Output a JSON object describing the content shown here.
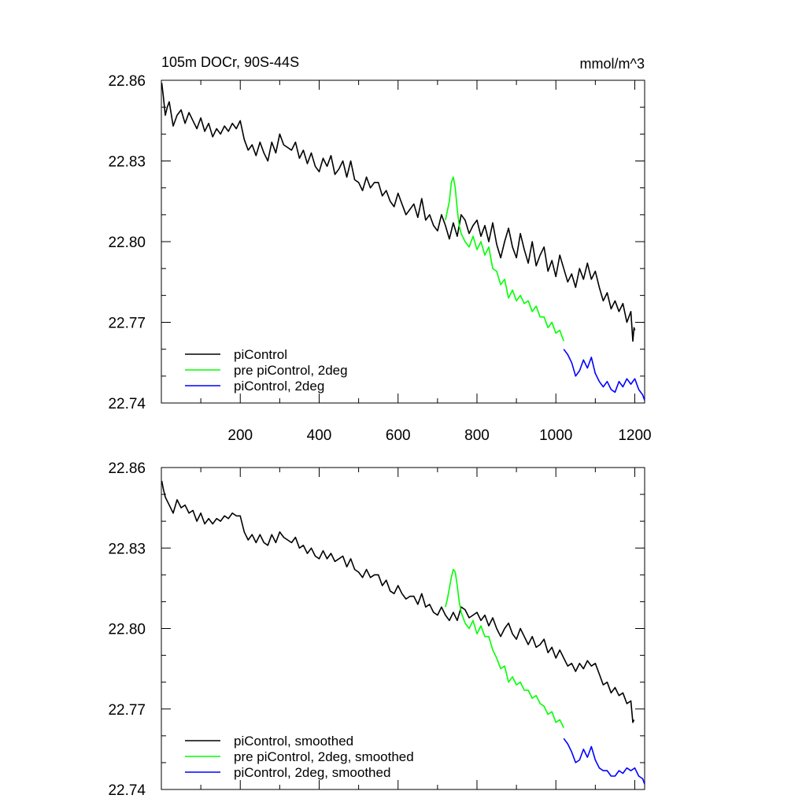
{
  "chart_data": [
    {
      "type": "line",
      "title_left": "105m DOCr, 90S-44S",
      "title_right": "mmol/m^3",
      "xlim": [
        0,
        1225
      ],
      "ylim": [
        22.74,
        22.86
      ],
      "xticks": [
        200,
        400,
        600,
        800,
        1000,
        1200
      ],
      "xticklabels": [
        "200",
        "400",
        "600",
        "800",
        "1000",
        "1200"
      ],
      "yticks": [
        22.74,
        22.77,
        22.8,
        22.83,
        22.86
      ],
      "yticklabels": [
        "22.74",
        "22.77",
        "22.80",
        "22.83",
        "22.86"
      ],
      "legend_position": "bottom-left",
      "series": [
        {
          "name": "piControl",
          "color": "#000000",
          "x": [
            1,
            5,
            10,
            15,
            20,
            30,
            40,
            50,
            60,
            70,
            80,
            90,
            100,
            110,
            120,
            130,
            140,
            150,
            160,
            170,
            180,
            190,
            200,
            210,
            220,
            230,
            240,
            250,
            260,
            270,
            280,
            290,
            300,
            310,
            320,
            330,
            340,
            350,
            360,
            370,
            380,
            390,
            400,
            410,
            420,
            430,
            440,
            450,
            460,
            470,
            480,
            490,
            500,
            510,
            520,
            530,
            540,
            550,
            560,
            570,
            580,
            590,
            600,
            610,
            620,
            630,
            640,
            650,
            660,
            670,
            680,
            690,
            700,
            710,
            720,
            730,
            740,
            750,
            760,
            770,
            780,
            790,
            800,
            810,
            820,
            830,
            840,
            850,
            860,
            870,
            880,
            890,
            900,
            910,
            920,
            930,
            940,
            950,
            960,
            970,
            980,
            990,
            1000,
            1010,
            1020,
            1030,
            1040,
            1050,
            1060,
            1070,
            1080,
            1090,
            1100,
            1110,
            1120,
            1130,
            1140,
            1150,
            1160,
            1170,
            1180,
            1190,
            1195,
            1198,
            1200
          ],
          "values": [
            22.859,
            22.854,
            22.847,
            22.85,
            22.852,
            22.843,
            22.847,
            22.849,
            22.844,
            22.848,
            22.845,
            22.842,
            22.846,
            22.841,
            22.844,
            22.839,
            22.842,
            22.84,
            22.843,
            22.841,
            22.844,
            22.842,
            22.845,
            22.838,
            22.834,
            22.836,
            22.832,
            22.837,
            22.833,
            22.83,
            22.837,
            22.833,
            22.84,
            22.836,
            22.835,
            22.834,
            22.837,
            22.831,
            22.834,
            22.829,
            22.833,
            22.828,
            22.826,
            22.831,
            22.828,
            22.832,
            22.825,
            22.827,
            22.83,
            22.824,
            22.83,
            22.823,
            22.822,
            22.819,
            22.824,
            22.82,
            22.822,
            22.822,
            22.817,
            22.819,
            22.815,
            22.813,
            22.818,
            22.814,
            22.81,
            22.812,
            22.814,
            22.809,
            22.816,
            22.808,
            22.81,
            22.806,
            22.804,
            22.81,
            22.806,
            22.801,
            22.807,
            22.802,
            22.81,
            22.808,
            22.803,
            22.806,
            22.808,
            22.802,
            22.806,
            22.8,
            22.807,
            22.799,
            22.794,
            22.8,
            22.805,
            22.798,
            22.794,
            22.803,
            22.797,
            22.792,
            22.8,
            22.791,
            22.795,
            22.798,
            22.789,
            22.793,
            22.787,
            22.795,
            22.79,
            22.785,
            22.788,
            22.783,
            22.79,
            22.786,
            22.792,
            22.786,
            22.789,
            22.783,
            22.778,
            22.781,
            22.775,
            22.778,
            22.774,
            22.777,
            22.77,
            22.774,
            22.763,
            22.768,
            22.767
          ]
        },
        {
          "name": "pre piControl, 2deg",
          "color": "#00ff00",
          "x": [
            720,
            730,
            735,
            740,
            745,
            750,
            755,
            760,
            770,
            780,
            790,
            800,
            810,
            820,
            830,
            840,
            850,
            860,
            870,
            880,
            890,
            900,
            910,
            920,
            930,
            940,
            950,
            960,
            970,
            980,
            990,
            1000,
            1010,
            1020
          ],
          "values": [
            22.808,
            22.815,
            22.822,
            22.824,
            22.82,
            22.812,
            22.806,
            22.803,
            22.8,
            22.798,
            22.802,
            22.797,
            22.8,
            22.795,
            22.798,
            22.79,
            22.789,
            22.784,
            22.786,
            22.779,
            22.782,
            22.778,
            22.78,
            22.777,
            22.778,
            22.774,
            22.776,
            22.772,
            22.772,
            22.768,
            22.77,
            22.766,
            22.767,
            22.763
          ]
        },
        {
          "name": "piControl, 2deg",
          "color": "#0000ff",
          "x": [
            1020,
            1030,
            1040,
            1050,
            1060,
            1070,
            1080,
            1090,
            1100,
            1110,
            1120,
            1130,
            1140,
            1150,
            1160,
            1170,
            1180,
            1190,
            1200,
            1210,
            1220,
            1225
          ],
          "values": [
            22.76,
            22.758,
            22.755,
            22.75,
            22.752,
            22.756,
            22.753,
            22.757,
            22.751,
            22.748,
            22.746,
            22.748,
            22.745,
            22.744,
            22.748,
            22.746,
            22.749,
            22.747,
            22.749,
            22.745,
            22.743,
            22.741
          ]
        }
      ]
    },
    {
      "type": "line",
      "xlim": [
        0,
        1225
      ],
      "ylim": [
        22.74,
        22.86
      ],
      "xticks": [
        200,
        400,
        600,
        800,
        1000,
        1200
      ],
      "yticks": [
        22.74,
        22.77,
        22.8,
        22.83,
        22.86
      ],
      "yticklabels": [
        "22.74",
        "22.77",
        "22.80",
        "22.83",
        "22.86"
      ],
      "legend_position": "bottom-left",
      "series": [
        {
          "name": "piControl, smoothed",
          "color": "#000000",
          "x": [
            1,
            5,
            10,
            20,
            30,
            40,
            50,
            60,
            70,
            80,
            90,
            100,
            110,
            120,
            130,
            140,
            150,
            160,
            170,
            180,
            190,
            200,
            210,
            220,
            230,
            240,
            250,
            260,
            270,
            280,
            290,
            300,
            310,
            320,
            330,
            340,
            350,
            360,
            370,
            380,
            390,
            400,
            410,
            420,
            430,
            440,
            450,
            460,
            470,
            480,
            490,
            500,
            510,
            520,
            530,
            540,
            550,
            560,
            570,
            580,
            590,
            600,
            610,
            620,
            630,
            640,
            650,
            660,
            670,
            680,
            690,
            700,
            710,
            720,
            730,
            740,
            750,
            760,
            770,
            780,
            790,
            800,
            810,
            820,
            830,
            840,
            850,
            860,
            870,
            880,
            890,
            900,
            910,
            920,
            930,
            940,
            950,
            960,
            970,
            980,
            990,
            1000,
            1010,
            1020,
            1030,
            1040,
            1050,
            1060,
            1070,
            1080,
            1090,
            1100,
            1110,
            1120,
            1130,
            1140,
            1150,
            1160,
            1170,
            1180,
            1190,
            1195,
            1198
          ],
          "values": [
            22.855,
            22.852,
            22.849,
            22.846,
            22.843,
            22.848,
            22.845,
            22.846,
            22.843,
            22.844,
            22.84,
            22.843,
            22.839,
            22.841,
            22.839,
            22.841,
            22.84,
            22.842,
            22.841,
            22.843,
            22.842,
            22.842,
            22.836,
            22.833,
            22.835,
            22.832,
            22.835,
            22.832,
            22.831,
            22.835,
            22.832,
            22.836,
            22.834,
            22.833,
            22.832,
            22.834,
            22.83,
            22.831,
            22.828,
            22.83,
            22.827,
            22.826,
            22.829,
            22.826,
            22.828,
            22.825,
            22.826,
            22.827,
            22.823,
            22.826,
            22.822,
            22.821,
            22.819,
            22.822,
            22.819,
            22.82,
            22.82,
            22.816,
            22.818,
            22.814,
            22.813,
            22.816,
            22.813,
            22.811,
            22.812,
            22.812,
            22.809,
            22.813,
            22.808,
            22.809,
            22.806,
            22.805,
            22.808,
            22.805,
            22.803,
            22.806,
            22.803,
            22.808,
            22.807,
            22.804,
            22.805,
            22.806,
            22.803,
            22.805,
            22.801,
            22.804,
            22.8,
            22.797,
            22.8,
            22.802,
            22.798,
            22.796,
            22.8,
            22.797,
            22.794,
            22.797,
            22.793,
            22.794,
            22.796,
            22.791,
            22.793,
            22.789,
            22.792,
            22.789,
            22.786,
            22.787,
            22.784,
            22.787,
            22.785,
            22.788,
            22.786,
            22.787,
            22.783,
            22.779,
            22.78,
            22.776,
            22.778,
            22.775,
            22.776,
            22.772,
            22.773,
            22.765,
            22.766
          ]
        },
        {
          "name": "pre piControl, 2deg, smoothed",
          "color": "#00ff00",
          "x": [
            720,
            725,
            730,
            735,
            740,
            745,
            750,
            755,
            760,
            770,
            780,
            790,
            800,
            810,
            820,
            830,
            840,
            850,
            860,
            870,
            880,
            890,
            900,
            910,
            920,
            930,
            940,
            950,
            960,
            970,
            980,
            990,
            1000,
            1010,
            1020
          ],
          "values": [
            22.808,
            22.811,
            22.815,
            22.819,
            22.822,
            22.821,
            22.816,
            22.81,
            22.806,
            22.802,
            22.8,
            22.803,
            22.798,
            22.801,
            22.797,
            22.797,
            22.792,
            22.789,
            22.785,
            22.786,
            22.78,
            22.782,
            22.779,
            22.78,
            22.777,
            22.777,
            22.774,
            22.775,
            22.772,
            22.771,
            22.768,
            22.769,
            22.765,
            22.766,
            22.763
          ]
        },
        {
          "name": "piControl, 2deg, smoothed",
          "color": "#0000ff",
          "x": [
            1020,
            1030,
            1040,
            1050,
            1060,
            1070,
            1080,
            1090,
            1100,
            1110,
            1120,
            1130,
            1140,
            1150,
            1160,
            1170,
            1180,
            1190,
            1200,
            1210,
            1220,
            1225
          ],
          "values": [
            22.759,
            22.757,
            22.754,
            22.75,
            22.751,
            22.755,
            22.752,
            22.756,
            22.751,
            22.748,
            22.747,
            22.747,
            22.745,
            22.745,
            22.747,
            22.746,
            22.748,
            22.747,
            22.748,
            22.745,
            22.744,
            22.742
          ]
        }
      ]
    }
  ]
}
